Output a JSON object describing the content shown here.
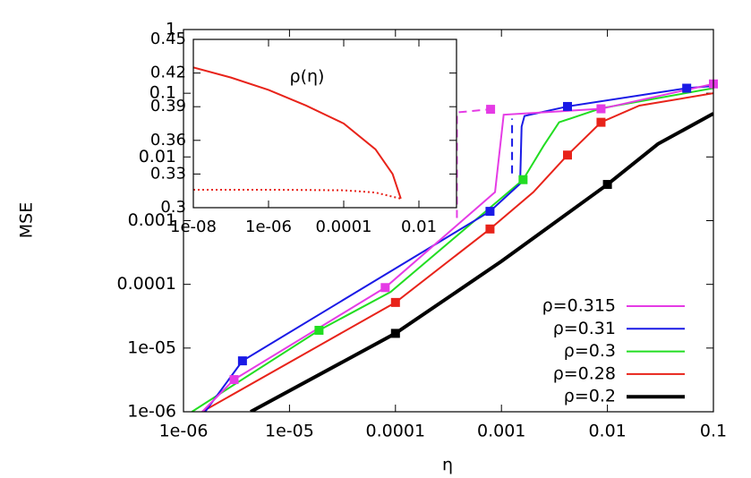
{
  "chart_data": [
    {
      "type": "line",
      "x_label": "η",
      "y_label": "MSE",
      "xlog": true,
      "ylog": true,
      "xlim": [
        1e-06,
        0.1
      ],
      "ylim": [
        1e-06,
        1
      ],
      "xticks": [
        {
          "value": 1e-06,
          "label": "1e-06"
        },
        {
          "value": 1e-05,
          "label": "1e-05"
        },
        0.0001,
        0.001,
        0.01,
        0.1
      ],
      "yticks": [
        {
          "value": 1e-06,
          "label": "1e-06"
        },
        {
          "value": 1e-05,
          "label": "1e-05"
        },
        0.0001,
        0.001,
        0.01,
        0.1,
        1
      ],
      "legend": "lower right",
      "series": [
        {
          "name": "ρ=0.315",
          "color": "#e53be5",
          "width": 2,
          "x": [
            1.5e-06,
            3e-06,
            8e-05,
            0.00087,
            0.00105,
            0.0087,
            0.1
          ],
          "values": [
            1e-06,
            3.2e-06,
            8.9e-05,
            0.0028,
            0.046,
            0.057,
            0.14
          ],
          "marker_x": [
            3e-06,
            8e-05,
            0.0087,
            0.1
          ],
          "marker_values": [
            3.2e-06,
            8.9e-05,
            0.057,
            0.14
          ],
          "dashed_x": [
            0.00038,
            0.00038,
            0.00079
          ],
          "dashed_values": [
            0.0011,
            0.05,
            0.056
          ],
          "dashed_marker_x": [
            0.00079
          ],
          "dashed_marker_values": [
            0.056
          ]
        },
        {
          "name": "ρ=0.31",
          "color": "#1a1ae6",
          "width": 2,
          "x": [
            1.6e-06,
            3.6e-06,
            0.00078,
            0.0015,
            0.00155,
            0.00165,
            0.0042,
            0.056,
            0.1
          ],
          "values": [
            1e-06,
            6.3e-06,
            0.0014,
            0.0038,
            0.03,
            0.044,
            0.062,
            0.12,
            0.13
          ],
          "marker_x": [
            3.6e-06,
            0.00078,
            0.0042,
            0.056
          ],
          "marker_values": [
            6.3e-06,
            0.0014,
            0.062,
            0.12
          ],
          "dashed_x": [
            0.00126,
            0.00126
          ],
          "dashed_values": [
            0.0055,
            0.04
          ],
          "dashed_marker_x": [],
          "dashed_marker_values": []
        },
        {
          "name": "ρ=0.3",
          "color": "#22dd22",
          "width": 2,
          "x": [
            1.2e-06,
            1.9e-05,
            9e-05,
            0.0016,
            0.0025,
            0.0035,
            0.0087,
            0.1
          ],
          "values": [
            1e-06,
            1.9e-05,
            7.6e-05,
            0.0044,
            0.015,
            0.035,
            0.058,
            0.12
          ],
          "marker_x": [
            1.9e-05,
            0.0016
          ],
          "marker_values": [
            1.9e-05,
            0.0044
          ],
          "dashed_x": [],
          "dashed_values": [],
          "dashed_marker_x": [],
          "dashed_marker_values": []
        },
        {
          "name": "ρ=0.28",
          "color": "#e8231a",
          "width": 2,
          "x": [
            1.5e-06,
            0.0001,
            0.00078,
            0.002,
            0.0042,
            0.0087,
            0.02,
            0.1
          ],
          "values": [
            1e-06,
            5.2e-05,
            0.00074,
            0.0028,
            0.0107,
            0.035,
            0.064,
            0.1
          ],
          "marker_x": [
            0.0001,
            0.00078,
            0.0042,
            0.0087
          ],
          "marker_values": [
            5.2e-05,
            0.00074,
            0.0107,
            0.035
          ],
          "dashed_x": [],
          "dashed_values": [],
          "dashed_marker_x": [],
          "dashed_marker_values": []
        },
        {
          "name": "ρ=0.2",
          "color": "#000000",
          "width": 4,
          "x": [
            4.3e-06,
            0.0001,
            0.001,
            0.01,
            0.03,
            0.1
          ],
          "values": [
            1e-06,
            1.7e-05,
            0.00023,
            0.0037,
            0.016,
            0.048
          ],
          "marker_x": [
            0.0001,
            0.01
          ],
          "marker_values": [
            1.7e-05,
            0.0037
          ],
          "dashed_x": [],
          "dashed_values": [],
          "dashed_marker_x": [],
          "dashed_marker_values": []
        }
      ]
    },
    {
      "type": "line",
      "title": "ρ(η)",
      "xlog": true,
      "ylog": false,
      "xlim": [
        1e-08,
        0.1
      ],
      "ylim": [
        0.3,
        0.45
      ],
      "xticks": [
        {
          "value": 1e-08,
          "label": "1e-08"
        },
        {
          "value": 1e-06,
          "label": "1e-06"
        },
        0.0001,
        0.01
      ],
      "yticks": [
        0.3,
        0.33,
        0.36,
        0.39,
        0.42,
        0.45
      ],
      "series": [
        {
          "color": "#e8231a",
          "width": 2,
          "x": [
            1e-08,
            1e-07,
            1e-06,
            1e-05,
            0.0001,
            0.0007,
            0.002,
            0.0033
          ],
          "values": [
            0.425,
            0.416,
            0.405,
            0.391,
            0.375,
            0.352,
            0.33,
            0.308
          ],
          "marker_x": [],
          "marker_values": [],
          "dashed_x": [],
          "dashed_values": [],
          "dashed_marker_x": [],
          "dashed_marker_values": []
        },
        {
          "color": "#e8231a",
          "width": 2,
          "dotted": true,
          "x": [
            1e-08,
            1e-06,
            0.0001,
            0.0007,
            0.0033
          ],
          "values": [
            0.316,
            0.316,
            0.3155,
            0.3135,
            0.308
          ],
          "marker_x": [],
          "marker_values": [],
          "dashed_x": [],
          "dashed_values": [],
          "dashed_marker_x": [],
          "dashed_marker_values": []
        }
      ]
    }
  ]
}
